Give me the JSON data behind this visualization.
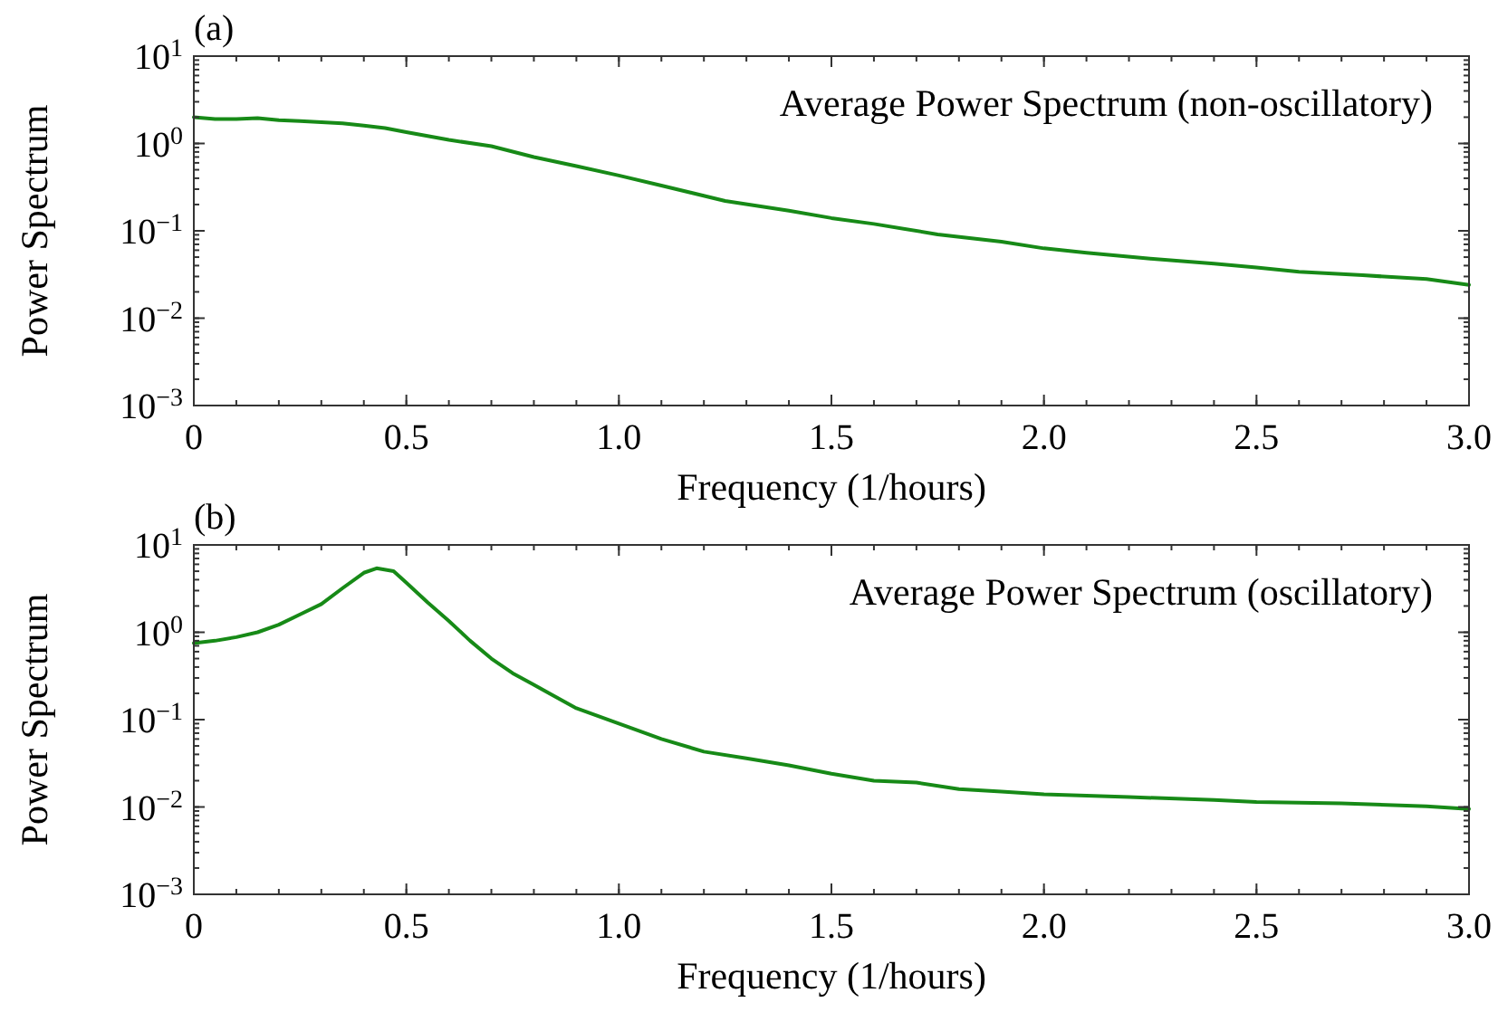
{
  "chart_data": [
    {
      "type": "line",
      "title": "(a)",
      "annotations": [
        "Average Power Spectrum (non-oscillatory)"
      ],
      "xlabel": "Frequency (1/hours)",
      "ylabel": "Power Spectrum",
      "log": "y",
      "grid": false,
      "marker": "none",
      "line_style": "solid",
      "xlim": [
        0,
        3.0
      ],
      "xticks": [
        {
          "value": 0,
          "label": "0"
        },
        0.5,
        {
          "value": 1,
          "label": "1.0"
        },
        1.5,
        {
          "value": 2,
          "label": "2.0"
        },
        2.5,
        {
          "value": 3,
          "label": "3.0"
        }
      ],
      "ylim": [
        0.001,
        10
      ],
      "yticks": [
        {
          "value": 0.001,
          "label": "10$^{−3}$"
        },
        {
          "value": 0.01,
          "label": "10$^{−2}$"
        },
        {
          "value": 0.1,
          "label": "10$^{−1}$"
        },
        {
          "value": 1,
          "label": "10$^{0}$"
        },
        {
          "value": 10,
          "label": "10$^{1}$"
        }
      ],
      "series": [
        {
          "color": "#178a17",
          "x": [
            0,
            0.05,
            0.1,
            0.15,
            0.2,
            0.25,
            0.3,
            0.35,
            0.4,
            0.45,
            0.5,
            0.6,
            0.7,
            0.8,
            0.9,
            1.0,
            1.1,
            1.25,
            1.4,
            1.5,
            1.6,
            1.75,
            1.9,
            2.0,
            2.1,
            2.25,
            2.4,
            2.5,
            2.6,
            2.75,
            2.9,
            3.0
          ],
          "values": [
            2.0,
            1.9,
            1.9,
            1.95,
            1.85,
            1.8,
            1.75,
            1.7,
            1.6,
            1.5,
            1.35,
            1.1,
            0.93,
            0.7,
            0.55,
            0.43,
            0.33,
            0.22,
            0.17,
            0.14,
            0.12,
            0.091,
            0.075,
            0.063,
            0.056,
            0.048,
            0.042,
            0.038,
            0.034,
            0.031,
            0.028,
            0.024
          ]
        }
      ]
    },
    {
      "type": "line",
      "title": "(b)",
      "annotations": [
        "Average Power Spectrum (oscillatory)"
      ],
      "xlabel": "Frequency (1/hours)",
      "ylabel": "Power Spectrum",
      "log": "y",
      "grid": false,
      "marker": "none",
      "line_style": "solid",
      "xlim": [
        0,
        3.0
      ],
      "xticks": [
        {
          "value": 0,
          "label": "0"
        },
        0.5,
        {
          "value": 1,
          "label": "1.0"
        },
        1.5,
        {
          "value": 2,
          "label": "2.0"
        },
        2.5,
        {
          "value": 3,
          "label": "3.0"
        }
      ],
      "ylim": [
        0.001,
        10
      ],
      "yticks": [
        {
          "value": 0.001,
          "label": "10$^{−3}$"
        },
        {
          "value": 0.01,
          "label": "10$^{−2}$"
        },
        {
          "value": 0.1,
          "label": "10$^{−1}$"
        },
        {
          "value": 1,
          "label": "10$^{0}$"
        },
        {
          "value": 10,
          "label": "10$^{1}$"
        }
      ],
      "series": [
        {
          "color": "#178a17",
          "x": [
            0,
            0.05,
            0.1,
            0.15,
            0.2,
            0.25,
            0.3,
            0.35,
            0.4,
            0.43,
            0.47,
            0.5,
            0.55,
            0.6,
            0.65,
            0.7,
            0.75,
            0.8,
            0.9,
            1.0,
            1.1,
            1.2,
            1.3,
            1.4,
            1.5,
            1.6,
            1.7,
            1.8,
            1.9,
            2.0,
            2.2,
            2.4,
            2.5,
            2.7,
            2.9,
            3.0
          ],
          "values": [
            0.75,
            0.8,
            0.88,
            1.0,
            1.22,
            1.6,
            2.1,
            3.2,
            4.8,
            5.4,
            5.0,
            3.7,
            2.2,
            1.35,
            0.8,
            0.5,
            0.34,
            0.25,
            0.135,
            0.09,
            0.06,
            0.043,
            0.036,
            0.03,
            0.024,
            0.02,
            0.019,
            0.016,
            0.015,
            0.014,
            0.013,
            0.012,
            0.0114,
            0.011,
            0.0102,
            0.0095
          ]
        }
      ]
    }
  ]
}
